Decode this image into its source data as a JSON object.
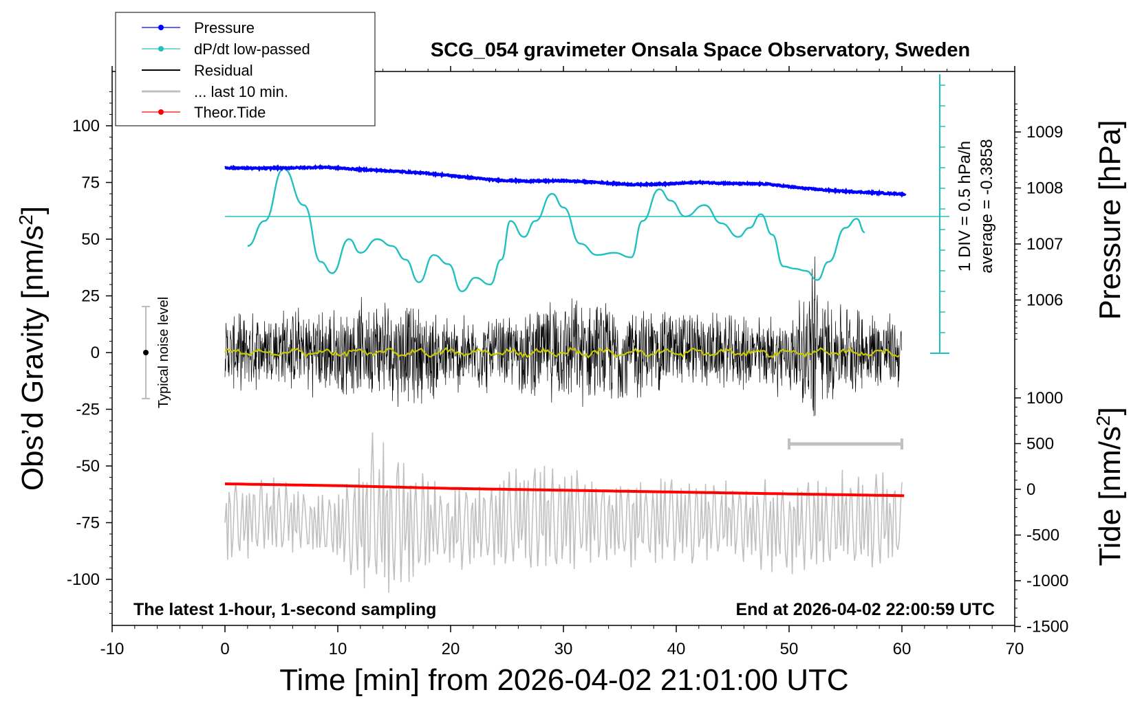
{
  "chart_data": {
    "type": "line",
    "title": "SCG_054 gravimeter Onsala Space Observatory, Sweden",
    "xlabel": "Time [min] from 2026-04-02 21:01:00 UTC",
    "ylabel": "Obs’d Gravity [nm/s²]",
    "ylabel_unit_base": "Obs’d Gravity [nm/s",
    "ylabel_unit_sup": "2",
    "ylabel_unit_close": "]",
    "y2label": "Pressure [hPa]",
    "y3label_base": "Tide [nm/s",
    "y3label_sup": "2",
    "y3label_close": "]",
    "xlim": [
      -10,
      70
    ],
    "ylim": [
      -120,
      120
    ],
    "x_ticks": [
      "-10",
      "0",
      "10",
      "20",
      "30",
      "40",
      "50",
      "60",
      "70"
    ],
    "y_ticks": [
      "100",
      "75",
      "50",
      "25",
      "0",
      "-25",
      "-50",
      "-75",
      "-100"
    ],
    "pressure_ticks": [
      "1009",
      "1008",
      "1007",
      "1006"
    ],
    "tide_ticks": [
      "1000",
      "500",
      "0",
      "-500",
      "-1000",
      "-1500"
    ],
    "legend_placement": "top-left",
    "legend": [
      "Pressure",
      "dP/dt low-passed",
      "Residual",
      "... last 10 min.",
      "Theor.Tide"
    ],
    "colors": {
      "pressure": "#0000ff",
      "dpdt": "#20c0c0",
      "residual": "#000000",
      "last10": "#c0c0c0",
      "tide": "#ff0000",
      "smooth": "#c8c800"
    },
    "annotations": {
      "bottom_left": "The latest 1-hour, 1-second sampling",
      "bottom_right": "End at 2026-04-02 22:00:59 UTC",
      "noise": "Typical noise level",
      "div": "1 DIV = 0.5 hPa/h",
      "average": "average = -0.3858"
    },
    "series": [
      {
        "name": "Pressure",
        "unit": "hPa",
        "x": [
          0,
          3,
          6,
          9,
          12,
          15,
          18,
          21,
          24,
          27,
          30,
          33,
          36,
          39,
          42,
          45,
          48,
          51,
          54,
          57,
          60.3
        ],
        "values": [
          1008.36,
          1008.35,
          1008.36,
          1008.37,
          1008.33,
          1008.3,
          1008.26,
          1008.2,
          1008.14,
          1008.12,
          1008.13,
          1008.1,
          1008.06,
          1008.07,
          1008.1,
          1008.08,
          1008.07,
          1008.0,
          1007.95,
          1007.92,
          1007.89
        ]
      },
      {
        "name": "dP/dt low-passed",
        "unit": "nm/s2 display units",
        "reference_level": 60,
        "x": [
          2,
          3.5,
          5.2,
          7,
          8.5,
          9.5,
          11,
          12,
          13.5,
          14.8,
          16,
          17.2,
          18.5,
          19.8,
          21,
          22.2,
          23.5,
          24.5,
          25.3,
          26.5,
          27.5,
          29,
          30,
          31.5,
          33,
          34.5,
          36,
          37,
          38.5,
          39.5,
          40.8,
          42.5,
          44,
          45.5,
          46.5,
          47.5,
          48.5,
          49.5,
          50.5,
          51.5,
          52.5,
          53.5,
          55,
          56,
          56.7
        ],
        "values": [
          47,
          58,
          81,
          65,
          40,
          35,
          50,
          44,
          50,
          47,
          41,
          31,
          43,
          39,
          27,
          33,
          30,
          41,
          58,
          51,
          58,
          70,
          64,
          48,
          43,
          44,
          42,
          58,
          72,
          67,
          60,
          65,
          57,
          51,
          55,
          61,
          52,
          38,
          37,
          36,
          32,
          40,
          55,
          59,
          53
        ]
      },
      {
        "name": "Residual",
        "unit": "nm/s2",
        "x": [
          0,
          5,
          10,
          12,
          15,
          20,
          25,
          30,
          35,
          40,
          45,
          50,
          52,
          55,
          60
        ],
        "values": [
          0,
          2,
          -1,
          3,
          1,
          -2,
          0,
          1,
          -1,
          2,
          0,
          -1,
          1,
          2,
          0
        ],
        "amplitude_envelope": [
          16,
          18,
          20,
          20,
          24,
          18,
          16,
          24,
          22,
          18,
          16,
          18,
          28,
          20,
          16
        ]
      },
      {
        "name": "... last 10 min.",
        "unit": "nm/s2",
        "x": [
          0,
          5,
          10,
          12,
          13,
          15,
          20,
          25,
          30,
          35,
          40,
          45,
          50,
          55,
          60
        ],
        "values": [
          -75,
          -72,
          -78,
          -75,
          -70,
          -75,
          -78,
          -75,
          -72,
          -75,
          -73,
          -75,
          -77,
          -74,
          -75
        ],
        "amplitude_envelope": [
          20,
          18,
          16,
          30,
          38,
          34,
          18,
          24,
          26,
          20,
          22,
          20,
          22,
          24,
          22
        ]
      },
      {
        "name": "Theor.Tide",
        "unit": "nm/s2",
        "x": [
          0,
          10,
          20,
          30,
          40,
          50,
          60.3
        ],
        "values": [
          60,
          40,
          10,
          -10,
          -30,
          -50,
          -70
        ]
      }
    ],
    "marker_10min": {
      "x_start": 50,
      "x_end": 60
    }
  }
}
